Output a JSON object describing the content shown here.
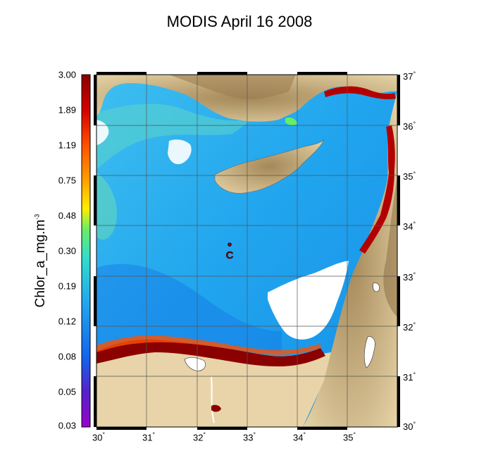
{
  "title": "MODIS April 16 2008",
  "colorbar": {
    "label": "Chlor_a_mg.m",
    "label_exponent": "-3",
    "ticks": [
      "3.00",
      "1.89",
      "1.19",
      "0.75",
      "0.48",
      "0.30",
      "0.19",
      "0.12",
      "0.08",
      "0.05",
      "0.03"
    ],
    "colors": [
      "#8b0000",
      "#d40000",
      "#ff4000",
      "#ff9900",
      "#ffee00",
      "#66ee66",
      "#33ddcc",
      "#22aaee",
      "#1166ee",
      "#5522cc",
      "#9900cc"
    ]
  },
  "map": {
    "lon_ticks": [
      "30",
      "31",
      "32",
      "33",
      "34",
      "35"
    ],
    "lat_ticks": [
      "37",
      "36",
      "35",
      "34",
      "33",
      "32",
      "31",
      "30"
    ],
    "degree_symbol": "°",
    "station_label": "C",
    "colors": {
      "sea": "#2aa8ee",
      "sea_deep": "#1488e6",
      "land": "#e8d4a8",
      "land_high": "#a78b60",
      "coast_bloom": "#8b0000",
      "cloud": "#ffffff",
      "grid": "#555555"
    }
  }
}
